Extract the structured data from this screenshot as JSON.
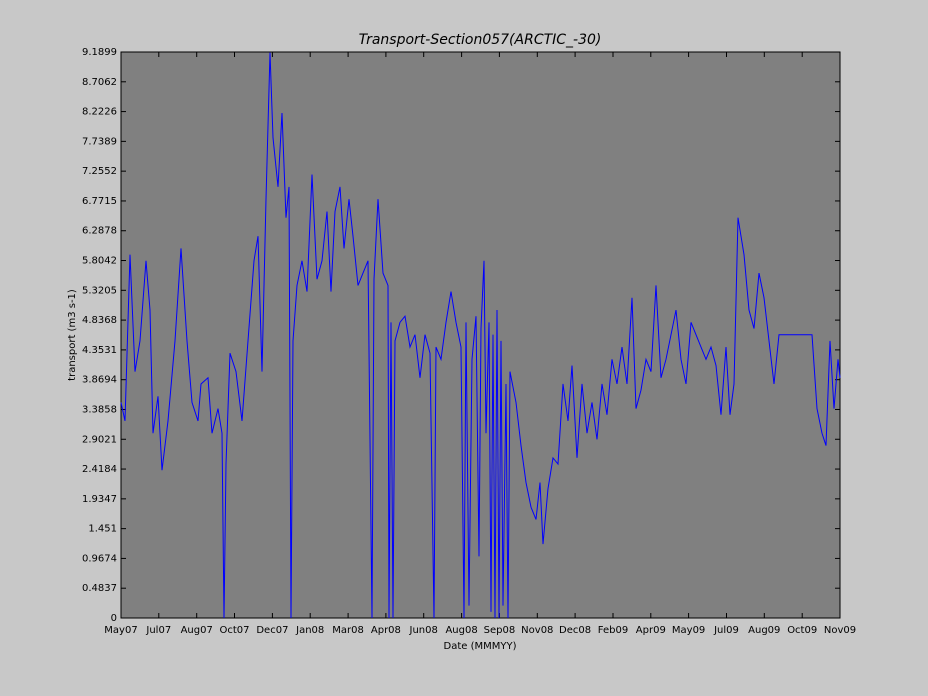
{
  "chart_data": {
    "type": "line",
    "title": "Transport-Section057(ARCTIC_-30)",
    "x_label": "Date (MMMYY)",
    "y_label": "transport (m3 s-1)",
    "x": [
      0,
      4,
      9,
      14,
      19,
      25,
      29,
      32,
      37,
      41,
      47,
      54,
      60,
      66,
      71,
      77,
      80,
      87,
      91,
      97,
      101,
      103,
      105,
      109,
      115,
      121,
      127,
      133,
      137,
      141,
      145,
      149,
      152,
      157,
      161,
      165,
      168,
      170,
      172,
      176,
      181,
      186,
      191,
      196,
      201,
      206,
      210,
      214,
      219,
      223,
      228,
      232,
      237,
      242,
      247,
      251,
      253,
      257,
      262,
      267,
      268,
      270,
      272,
      274,
      279,
      284,
      289,
      294,
      299,
      304,
      309,
      313,
      315,
      320,
      325,
      330,
      335,
      340,
      343,
      345,
      348,
      351,
      355,
      358,
      360,
      363,
      365,
      368,
      370,
      372,
      374,
      376,
      378,
      380,
      382,
      385,
      387,
      389,
      395,
      400,
      405,
      410,
      415,
      419,
      422,
      427,
      432,
      437,
      442,
      447,
      451,
      456,
      461,
      466,
      471,
      476,
      481,
      486,
      491,
      496,
      501,
      506,
      511,
      515,
      520,
      525,
      530,
      535,
      540,
      545,
      550,
      555,
      560,
      565,
      570,
      575,
      580,
      585,
      590,
      595,
      600,
      605,
      609,
      613,
      617,
      623,
      628,
      633,
      638,
      643,
      648,
      653,
      658,
      691,
      696,
      701,
      705,
      709,
      713,
      717,
      719
    ],
    "series": [
      {
        "name": "transport",
        "color": "#0000ff",
        "values": [
          3.5,
          3.2,
          5.9,
          4.0,
          4.5,
          5.8,
          5.0,
          3.0,
          3.6,
          2.4,
          3.2,
          4.5,
          6.0,
          4.5,
          3.5,
          3.2,
          3.8,
          3.9,
          3.0,
          3.4,
          3.0,
          0,
          2.5,
          4.3,
          4.0,
          3.2,
          4.5,
          5.8,
          6.2,
          4.0,
          6.8,
          9.18,
          7.8,
          7.0,
          8.2,
          6.5,
          7.0,
          0,
          4.5,
          5.4,
          5.8,
          5.3,
          7.2,
          5.5,
          5.8,
          6.6,
          5.3,
          6.6,
          7.0,
          6.0,
          6.8,
          6.2,
          5.4,
          5.6,
          5.8,
          0,
          5.5,
          6.8,
          5.6,
          5.4,
          0,
          4.8,
          0,
          4.5,
          4.8,
          4.9,
          4.4,
          4.6,
          3.9,
          4.6,
          4.3,
          0,
          4.4,
          4.2,
          4.8,
          5.3,
          4.8,
          4.4,
          0,
          4.8,
          0.2,
          4.2,
          4.9,
          1.0,
          4.7,
          5.8,
          3.0,
          4.8,
          0.1,
          4.6,
          0,
          5.0,
          0,
          4.5,
          0.2,
          3.8,
          0,
          4.0,
          3.5,
          2.8,
          2.2,
          1.8,
          1.6,
          2.2,
          1.2,
          2.1,
          2.6,
          2.5,
          3.8,
          3.2,
          4.1,
          2.6,
          3.8,
          3.0,
          3.5,
          2.9,
          3.8,
          3.3,
          4.2,
          3.8,
          4.4,
          3.8,
          5.2,
          3.4,
          3.7,
          4.2,
          4.0,
          5.4,
          3.9,
          4.2,
          4.6,
          5.0,
          4.2,
          3.8,
          4.8,
          4.6,
          4.4,
          4.2,
          4.4,
          4.1,
          3.3,
          4.4,
          3.3,
          3.8,
          6.5,
          5.9,
          5.0,
          4.7,
          5.6,
          5.2,
          4.5,
          3.8,
          4.6,
          4.6,
          3.4,
          3.0,
          2.8,
          4.5,
          3.4,
          4.2,
          3.9
        ]
      }
    ],
    "xlim": [
      0,
      719
    ],
    "xticks": [
      {
        "value": 0,
        "label": "May07"
      },
      {
        "value": 37.8,
        "label": "Jul07"
      },
      {
        "value": 75.7,
        "label": "Aug07"
      },
      {
        "value": 113.5,
        "label": "Oct07"
      },
      {
        "value": 151.4,
        "label": "Dec07"
      },
      {
        "value": 189.2,
        "label": "Jan08"
      },
      {
        "value": 227.1,
        "label": "Mar08"
      },
      {
        "value": 264.9,
        "label": "Apr08"
      },
      {
        "value": 302.7,
        "label": "Jun08"
      },
      {
        "value": 340.6,
        "label": "Aug08"
      },
      {
        "value": 378.4,
        "label": "Sep08"
      },
      {
        "value": 416.3,
        "label": "Nov08"
      },
      {
        "value": 454.1,
        "label": "Dec08"
      },
      {
        "value": 492,
        "label": "Feb09"
      },
      {
        "value": 529.8,
        "label": "Apr09"
      },
      {
        "value": 567.6,
        "label": "May09"
      },
      {
        "value": 605.5,
        "label": "Jul09"
      },
      {
        "value": 643.3,
        "label": "Aug09"
      },
      {
        "value": 681.2,
        "label": "Oct09"
      },
      {
        "value": 719,
        "label": "Nov09"
      }
    ],
    "ylim": [
      0,
      9.1899
    ],
    "yticks": [
      0,
      0.4837,
      0.9674,
      1.451,
      1.9347,
      2.4184,
      2.9021,
      3.3858,
      3.8694,
      4.3531,
      4.8368,
      5.3205,
      5.8042,
      6.2878,
      6.7715,
      7.2552,
      7.7389,
      8.2226,
      8.7062,
      9.1899
    ]
  }
}
